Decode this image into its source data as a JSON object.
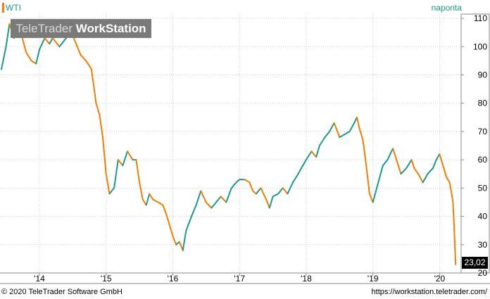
{
  "header": {
    "symbol": "WTI",
    "frequency": "naponta"
  },
  "watermark": {
    "brand_light": "TeleTrader ",
    "brand_bold": "WorkStation"
  },
  "footer": {
    "copyright": "© 2020 TeleTrader Software GmbH",
    "url": "https://workstation.teletrader.com/"
  },
  "last_value_label": "23,02",
  "colors": {
    "up": "#1a9b8a",
    "down": "#f57c00",
    "grid": "#d0d0d0",
    "text": "#000000"
  },
  "chart_data": {
    "type": "line",
    "series": [
      {
        "name": "WTI"
      }
    ],
    "x_tick_labels": [
      "'14",
      "'15",
      "'16",
      "'17",
      "'18",
      "'19",
      "'20"
    ],
    "x_ticks": [
      2014,
      2015,
      2016,
      2017,
      2018,
      2019,
      2020
    ],
    "y_tick_labels": [
      "110",
      "100",
      "90",
      "80",
      "70",
      "60",
      "50",
      "40",
      "30",
      "20"
    ],
    "y_ticks": [
      110,
      100,
      90,
      80,
      70,
      60,
      50,
      40,
      30,
      20
    ],
    "xlim": [
      2013.43,
      2020.27
    ],
    "ylim": [
      20,
      111.5
    ],
    "grid": true,
    "x": [
      2013.43,
      2013.5,
      2013.55,
      2013.62,
      2013.7,
      2013.8,
      2013.88,
      2013.95,
      2014.0,
      2014.08,
      2014.15,
      2014.2,
      2014.3,
      2014.4,
      2014.48,
      2014.55,
      2014.62,
      2014.7,
      2014.78,
      2014.85,
      2014.9,
      2014.95,
      2015.0,
      2015.05,
      2015.12,
      2015.18,
      2015.25,
      2015.32,
      2015.4,
      2015.45,
      2015.5,
      2015.55,
      2015.6,
      2015.65,
      2015.7,
      2015.78,
      2015.85,
      2015.9,
      2015.95,
      2016.0,
      2016.05,
      2016.1,
      2016.15,
      2016.2,
      2016.28,
      2016.35,
      2016.42,
      2016.5,
      2016.58,
      2016.65,
      2016.72,
      2016.8,
      2016.88,
      2016.95,
      2017.0,
      2017.08,
      2017.15,
      2017.2,
      2017.25,
      2017.32,
      2017.4,
      2017.45,
      2017.5,
      2017.58,
      2017.65,
      2017.72,
      2017.8,
      2017.88,
      2017.95,
      2018.0,
      2018.08,
      2018.15,
      2018.2,
      2018.28,
      2018.35,
      2018.42,
      2018.5,
      2018.58,
      2018.65,
      2018.72,
      2018.76,
      2018.8,
      2018.85,
      2018.9,
      2018.95,
      2019.0,
      2019.08,
      2019.15,
      2019.22,
      2019.3,
      2019.38,
      2019.42,
      2019.5,
      2019.58,
      2019.62,
      2019.68,
      2019.75,
      2019.82,
      2019.9,
      2019.95,
      2020.0,
      2020.05,
      2020.1,
      2020.15,
      2020.18,
      2020.2,
      2020.22,
      2020.24
    ],
    "y": [
      92,
      100,
      108,
      103,
      107,
      98,
      95,
      94,
      99,
      103,
      101,
      103,
      100,
      103,
      105,
      101,
      97,
      95,
      92,
      80,
      76,
      68,
      55,
      48,
      50,
      60,
      58,
      63,
      60,
      60,
      52,
      46,
      44,
      48,
      46,
      45,
      44,
      41,
      37,
      33,
      30,
      31,
      28,
      35,
      40,
      44,
      49,
      45,
      43,
      45,
      47,
      45,
      50,
      52,
      53,
      53,
      52,
      49,
      48,
      50,
      46,
      43,
      47,
      48,
      50,
      48,
      52,
      55,
      58,
      60,
      63,
      61,
      65,
      68,
      70,
      73,
      68,
      69,
      70,
      73,
      75,
      71,
      67,
      58,
      48,
      45,
      52,
      58,
      60,
      64,
      58,
      55,
      57,
      60,
      57,
      55,
      52,
      55,
      57,
      60,
      62,
      58,
      54,
      52,
      48,
      45,
      35,
      23
    ]
  }
}
